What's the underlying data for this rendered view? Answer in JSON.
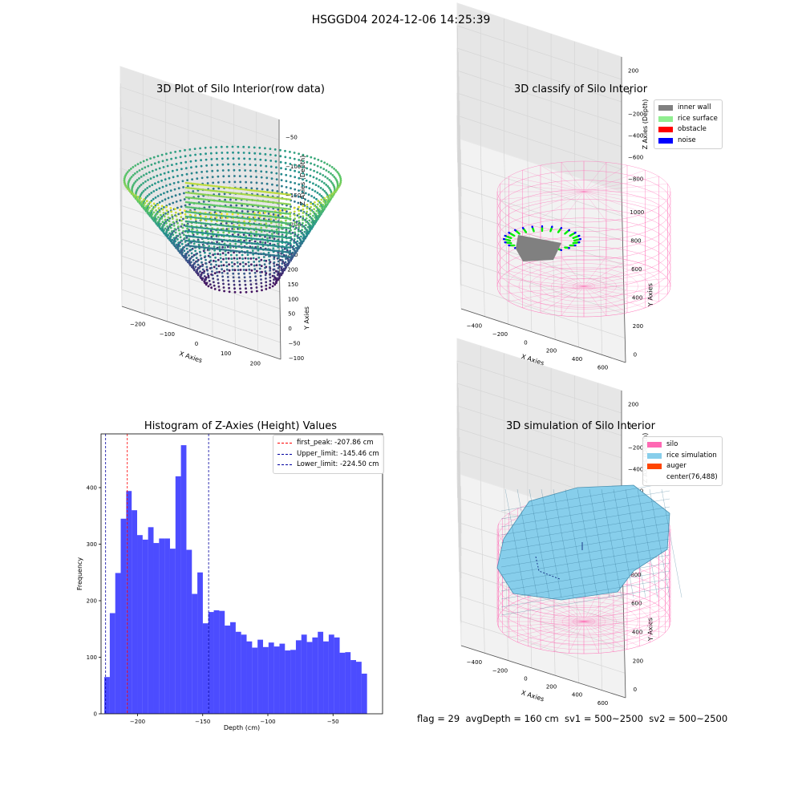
{
  "suptitle": "HSGGD04 2024-12-06 14:25:39",
  "footer": "flag = 29  avgDepth = 160 cm  sv1 = 500~2500  sv2 = 500~2500",
  "chart_data": [
    {
      "type": "scatter",
      "title": "3D Plot of Silo Interior(row data)",
      "xlabel": "X Axies",
      "ylabel": "Y Axies",
      "zlabel": "Z Axies (Depth)",
      "xticks": [
        "−200",
        "−100",
        "0",
        "100",
        "200"
      ],
      "yticks": [
        "−100",
        "−50",
        "0",
        "50",
        "100",
        "150",
        "200",
        "250"
      ],
      "zticks": [
        "−50",
        "−100",
        "−150",
        "−200"
      ],
      "colormap": "viridis"
    },
    {
      "type": "scatter",
      "title": "3D classify of Silo Interior",
      "xlabel": "X Axies",
      "ylabel": "Y Axies",
      "zlabel": "Z Axies (Depth)",
      "xticks": [
        "−400",
        "−200",
        "0",
        "200",
        "400",
        "600"
      ],
      "yticks": [
        "0",
        "200",
        "400",
        "600",
        "800",
        "1000"
      ],
      "zticks": [
        "200",
        "0",
        "−200",
        "−400",
        "−600",
        "−800"
      ],
      "legend": [
        {
          "label": "inner wall",
          "color": "#808080"
        },
        {
          "label": "rice surface",
          "color": "#90ee90"
        },
        {
          "label": "obstacle",
          "color": "#ff0000"
        },
        {
          "label": "noise",
          "color": "#0000ff"
        }
      ]
    },
    {
      "type": "bar",
      "title": "Histogram of Z-Axies (Height) Values",
      "xlabel": "Depth (cm)",
      "ylabel": "Frequency",
      "xlim": [
        -228,
        -12
      ],
      "ylim": [
        0,
        495
      ],
      "xticks": [
        -200,
        -150,
        -100,
        -50
      ],
      "xtick_labels": [
        "−200",
        "−150",
        "−100",
        "−50"
      ],
      "yticks": [
        0,
        100,
        200,
        300,
        400
      ],
      "bin_start": -225.5,
      "bin_width": 4.2,
      "values": [
        65,
        178,
        249,
        345,
        394,
        360,
        316,
        308,
        330,
        302,
        310,
        310,
        292,
        420,
        475,
        290,
        212,
        250,
        160,
        180,
        183,
        182,
        156,
        162,
        145,
        140,
        128,
        117,
        131,
        118,
        126,
        119,
        124,
        112,
        113,
        130,
        140,
        127,
        135,
        145,
        128,
        140,
        135,
        108,
        109,
        95,
        92,
        71
      ],
      "bar_color": "#0000ff",
      "vlines": [
        {
          "label": "first_peak: -207.86 cm",
          "x": -207.86,
          "color": "#ff0000"
        },
        {
          "label": "Upper_limit: -145.46 cm",
          "x": -145.46,
          "color": "#0000a0"
        },
        {
          "label": "Lower_limit: -224.50 cm",
          "x": -224.5,
          "color": "#0000a0"
        }
      ],
      "legend_position": "upper right"
    },
    {
      "type": "surface",
      "title": "3D simulation of Silo Interior",
      "xlabel": "X Axies",
      "ylabel": "Y Axies",
      "zlabel": "Z Axies (Depth)",
      "xticks": [
        "−400",
        "−200",
        "0",
        "200",
        "400",
        "600"
      ],
      "yticks": [
        "0",
        "200",
        "400",
        "600",
        "800",
        "1000"
      ],
      "zticks": [
        "200",
        "0",
        "−200",
        "−400",
        "−600",
        "−800"
      ],
      "legend": [
        {
          "label": "silo",
          "color": "#ff69b4"
        },
        {
          "label": "rice simulation",
          "color": "#87ceeb"
        },
        {
          "label": "auger",
          "color": "#ff4500"
        },
        {
          "label": "center(76,488)",
          "color": ""
        }
      ]
    }
  ]
}
